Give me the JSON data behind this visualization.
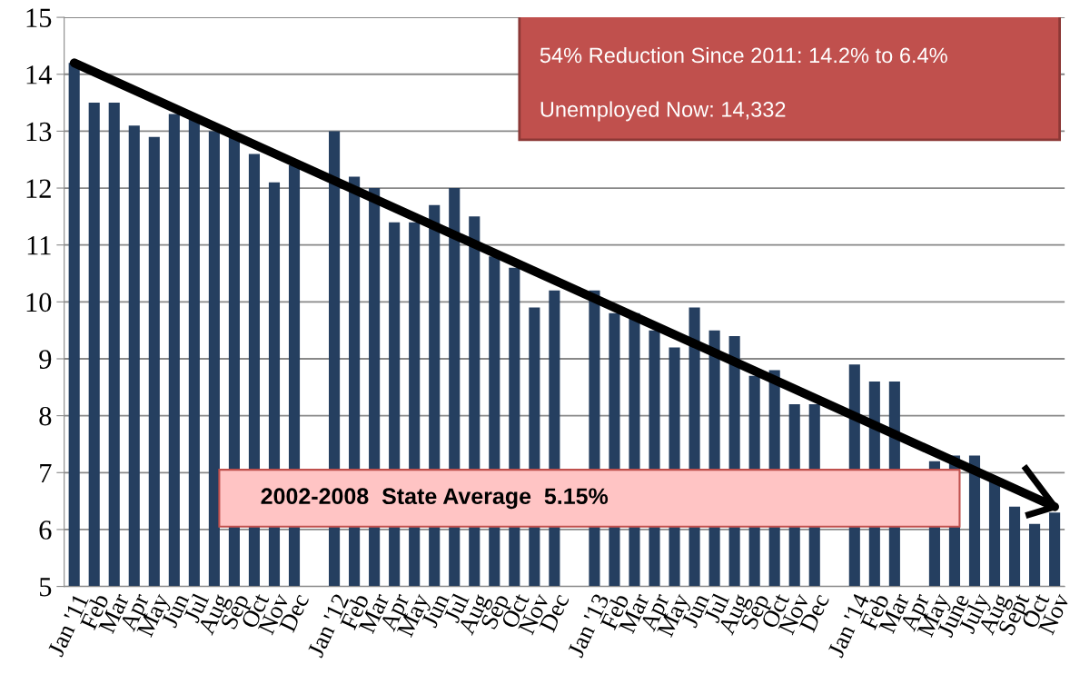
{
  "chart_data": {
    "type": "bar",
    "categories": [
      "Jan '11",
      "Feb",
      "Mar",
      "Apr",
      "May",
      "Jun",
      "Jul",
      "Aug",
      "Sep",
      "Oct",
      "Nov",
      "Dec",
      null,
      "Jan '12",
      "Feb",
      "Mar",
      "Apr",
      "May",
      "Jun",
      "Jul",
      "Aug",
      "Sep",
      "Oct",
      "Nov",
      "Dec",
      null,
      "Jan '13",
      "Feb",
      "Mar",
      "Apr",
      "May",
      "Jun",
      "Jul",
      "Aug",
      "Sep",
      "Oct",
      "Nov",
      "Dec",
      null,
      "Jan '14",
      "Feb",
      "Mar",
      "Apr",
      "May",
      "June",
      "July",
      "Aug",
      "Sept",
      "Oct",
      "Nov"
    ],
    "values": [
      14.2,
      13.5,
      13.5,
      13.1,
      12.9,
      13.3,
      13.2,
      13.0,
      12.9,
      12.6,
      12.1,
      12.4,
      null,
      13.0,
      12.2,
      12.0,
      11.4,
      11.4,
      11.7,
      12.0,
      11.5,
      10.8,
      10.6,
      9.9,
      10.2,
      null,
      10.2,
      9.8,
      9.8,
      9.5,
      9.2,
      9.9,
      9.5,
      9.4,
      8.7,
      8.8,
      8.2,
      8.2,
      null,
      8.9,
      8.6,
      8.6,
      null,
      7.2,
      7.3,
      7.3,
      6.9,
      6.4,
      6.1,
      6.3
    ],
    "color": "#253f60",
    "series": [
      {
        "type": "line",
        "values": [
          14.2,
          null,
          null,
          null,
          null,
          null,
          null,
          null,
          null,
          null,
          null,
          null,
          null,
          null,
          null,
          null,
          null,
          null,
          null,
          null,
          null,
          null,
          null,
          null,
          null,
          null,
          null,
          null,
          null,
          null,
          null,
          null,
          null,
          null,
          null,
          null,
          null,
          null,
          null,
          null,
          null,
          null,
          null,
          null,
          null,
          null,
          null,
          null,
          null,
          6.4
        ],
        "color": "#000000",
        "line_style": "solid"
      }
    ],
    "ylim": [
      5,
      15
    ],
    "yticks": [
      5,
      6,
      7,
      8,
      9,
      10,
      11,
      12,
      13,
      14,
      15
    ],
    "grid": "y",
    "legend": false,
    "annotations": [
      "54% Reduction Since 2011: 14.2% to 6.4%",
      "Unemployed Now: 14,332",
      "2002-2008  State Average  5.15%"
    ]
  }
}
